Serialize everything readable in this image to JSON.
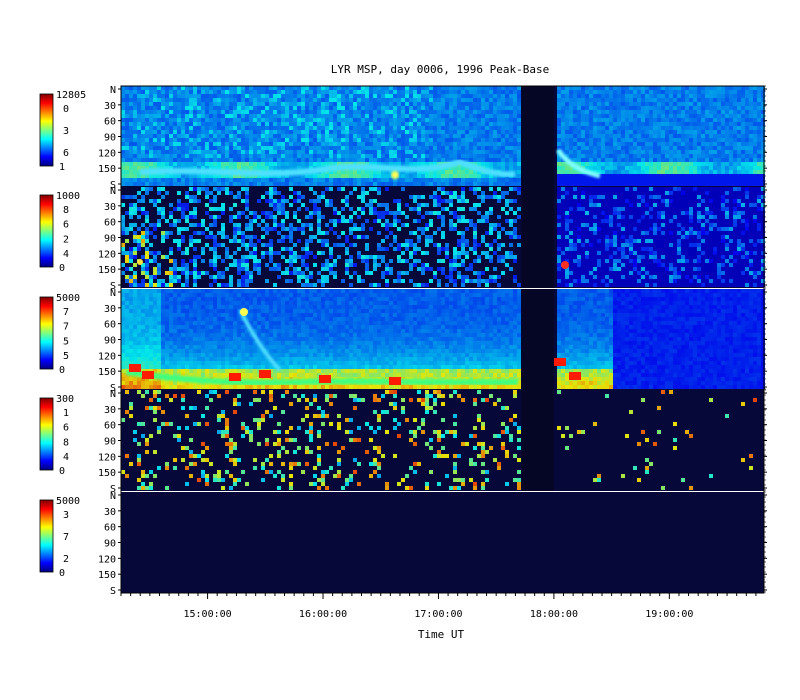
{
  "chart_data": {
    "type": "heatmap",
    "title": "LYR MSP, day 0006, 1996 Peak-Base",
    "xlabel": "Time UT",
    "x_ticks": [
      "15:00:00",
      "16:00:00",
      "17:00:00",
      "18:00:00",
      "19:00:00"
    ],
    "y_tick_labels": [
      "N",
      "30",
      "60",
      "90",
      "120",
      "150",
      "S"
    ],
    "colorbars": [
      {
        "max": "12805",
        "labels": [
          "0",
          "3",
          "6"
        ],
        "min": "1"
      },
      {
        "max": "1000",
        "labels": [
          "8",
          "6",
          "2",
          "4"
        ],
        "min": "0"
      },
      {
        "max": "5000",
        "labels": [
          "7",
          "7",
          "5",
          "5"
        ],
        "min": "0"
      },
      {
        "max": "300",
        "labels": [
          "1",
          "6",
          "8",
          "4"
        ],
        "min": "0"
      },
      {
        "max": "5000",
        "labels": [
          "3",
          "7",
          "2"
        ],
        "min": "0"
      }
    ],
    "panels": [
      {
        "channel": 1,
        "data_gap": [
          17.72,
          18.0
        ],
        "activity": "diffuse aurora, bright band at 150-170 deg"
      },
      {
        "channel": 2,
        "data_gap": [
          17.72,
          18.0
        ],
        "activity": "noisy weak emission, patches near S"
      },
      {
        "channel": 3,
        "data_gap": [
          17.72,
          18.0
        ],
        "activity": "strong red emission near 150-170 deg"
      },
      {
        "channel": 4,
        "data_gap": [
          17.72,
          18.0
        ],
        "activity": "sparse noise speckle"
      },
      {
        "channel": 5,
        "data_gap": null,
        "activity": "no data"
      }
    ],
    "x_range_hours": [
      14.25,
      19.82
    ],
    "colormap": "jet",
    "background_color": "#06083a"
  }
}
